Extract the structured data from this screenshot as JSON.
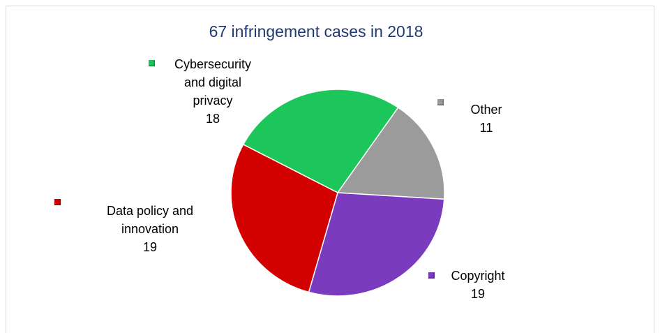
{
  "chart_data": {
    "type": "pie",
    "title": "67 infringement cases in 2018",
    "categories": [
      "Cybersecurity and digital privacy",
      "Other",
      "Copyright",
      "Data policy and innovation"
    ],
    "values": [
      18,
      11,
      19,
      19
    ],
    "colors": [
      "#1dc65a",
      "#9b9b9b",
      "#7b3bbf",
      "#d30000"
    ]
  }
}
